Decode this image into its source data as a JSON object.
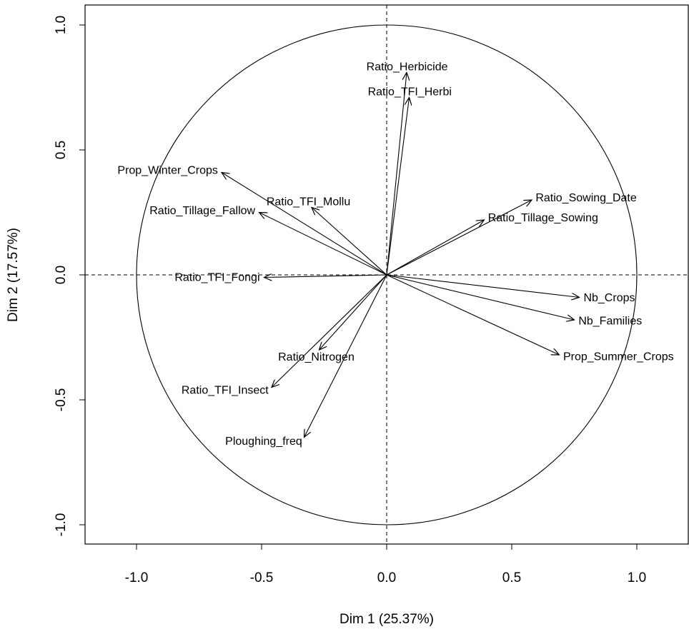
{
  "chart_data": {
    "type": "scatter",
    "title": "",
    "xlabel": "Dim 1 (25.37%)",
    "ylabel": "Dim 2 (17.57%)",
    "xlim": [
      -1.2,
      1.22
    ],
    "ylim": [
      -1.08,
      1.08
    ],
    "x_ticks": [
      "-1.0",
      "-0.5",
      "0.0",
      "0.5",
      "1.0"
    ],
    "y_ticks": [
      "-1.0",
      "-0.5",
      "0.0",
      "0.5",
      "1.0"
    ],
    "grid": false,
    "legend": "none",
    "correlation_circle": true,
    "reference_lines": "dashed at x=0 and y=0",
    "variables": [
      {
        "name": "Ratio_Herbicide",
        "x": 0.08,
        "y": 0.81
      },
      {
        "name": "Ratio_TFI_Herbi",
        "x": 0.09,
        "y": 0.71
      },
      {
        "name": "Prop_Winter_Crops",
        "x": -0.66,
        "y": 0.41
      },
      {
        "name": "Ratio_Sowing_Date",
        "x": 0.58,
        "y": 0.3
      },
      {
        "name": "Ratio_Tillage_Fallow",
        "x": -0.51,
        "y": 0.25
      },
      {
        "name": "Ratio_TFI_Mollu",
        "x": -0.3,
        "y": 0.27
      },
      {
        "name": "Ratio_Tillage_Sowing",
        "x": 0.39,
        "y": 0.22
      },
      {
        "name": "Ratio_TFI_Fongi",
        "x": -0.49,
        "y": -0.01
      },
      {
        "name": "Nb_Crops",
        "x": 0.77,
        "y": -0.09
      },
      {
        "name": "Nb_Families",
        "x": 0.75,
        "y": -0.18
      },
      {
        "name": "Prop_Summer_Crops",
        "x": 0.69,
        "y": -0.32
      },
      {
        "name": "Ratio_Nitrogen",
        "x": -0.27,
        "y": -0.3
      },
      {
        "name": "Ratio_TFI_Insect",
        "x": -0.46,
        "y": -0.45
      },
      {
        "name": "Ploughing_freq",
        "x": -0.33,
        "y": -0.65
      }
    ]
  }
}
